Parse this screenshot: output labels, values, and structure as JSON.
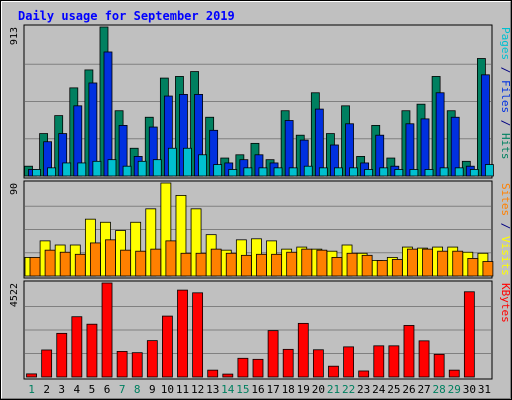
{
  "chart_data": {
    "type": "bar",
    "title": "Daily usage for September 2019",
    "categories": [
      "1",
      "2",
      "3",
      "4",
      "5",
      "6",
      "7",
      "8",
      "9",
      "10",
      "11",
      "12",
      "13",
      "14",
      "15",
      "16",
      "17",
      "18",
      "19",
      "20",
      "21",
      "22",
      "23",
      "24",
      "25",
      "26",
      "27",
      "28",
      "29",
      "30",
      "31"
    ],
    "weekend_days": [
      1,
      7,
      8,
      14,
      15,
      21,
      22,
      28,
      29
    ],
    "panels": [
      {
        "id": "hits-files-pages",
        "ymax": 913,
        "ymax_label": "913",
        "side_labels": [
          {
            "text": "Pages",
            "color": "#00c0d0"
          },
          {
            "text": " / ",
            "color": "#000080"
          },
          {
            "text": "Files",
            "color": "#0030e0"
          },
          {
            "text": " / ",
            "color": "#000080"
          },
          {
            "text": "Hits",
            "color": "#008060"
          }
        ],
        "series": [
          {
            "name": "Hits",
            "color": "#008060",
            "values": [
              60,
              260,
              370,
              540,
              650,
              913,
              400,
              170,
              360,
              600,
              610,
              640,
              360,
              110,
              130,
              200,
              100,
              400,
              250,
              510,
              260,
              430,
              120,
              310,
              110,
              400,
              440,
              610,
              400,
              90,
              720
            ]
          },
          {
            "name": "Files",
            "color": "#0030e0",
            "values": [
              40,
              210,
              260,
              430,
              570,
              760,
              310,
              120,
              300,
              490,
              500,
              500,
              280,
              80,
              100,
              130,
              80,
              340,
              220,
              410,
              190,
              320,
              80,
              250,
              60,
              320,
              350,
              510,
              360,
              60,
              620
            ]
          },
          {
            "name": "Pages",
            "color": "#00c0d0",
            "values": [
              40,
              50,
              80,
              80,
              90,
              100,
              60,
              90,
              100,
              170,
              170,
              130,
              70,
              40,
              50,
              50,
              50,
              50,
              60,
              50,
              50,
              50,
              40,
              50,
              40,
              40,
              40,
              50,
              50,
              40,
              70
            ]
          }
        ]
      },
      {
        "id": "visits-sites",
        "ymax": 90,
        "ymax_label": "90",
        "side_labels": [
          {
            "text": "Sites",
            "color": "#ff8000"
          },
          {
            "text": " / ",
            "color": "#000080"
          },
          {
            "text": "Visits",
            "color": "#ffff00"
          }
        ],
        "series": [
          {
            "name": "Visits",
            "color": "#ffff00",
            "values": [
              18,
              34,
              30,
              30,
              55,
              52,
              44,
              52,
              65,
              90,
              78,
              65,
              40,
              25,
              35,
              36,
              34,
              26,
              28,
              26,
              24,
              30,
              22,
              15,
              18,
              28,
              27,
              28,
              28,
              23,
              22
            ]
          },
          {
            "name": "Sites",
            "color": "#ff8000",
            "values": [
              18,
              25,
              23,
              21,
              32,
              35,
              25,
              24,
              26,
              34,
              22,
              22,
              26,
              22,
              20,
              21,
              21,
              23,
              26,
              25,
              18,
              22,
              20,
              15,
              16,
              26,
              26,
              24,
              24,
              17,
              14
            ]
          }
        ]
      },
      {
        "id": "kbytes",
        "ymax": 4522,
        "ymax_label": "4522",
        "side_labels": [
          {
            "text": "KBytes",
            "color": "#ff0000"
          }
        ],
        "series": [
          {
            "name": "KBytes",
            "color": "#ff0000",
            "values": [
              150,
              1300,
              2100,
              2900,
              2540,
              4522,
              1230,
              1170,
              1750,
              2930,
              4180,
              4050,
              330,
              140,
              900,
              850,
              2230,
              1330,
              2580,
              1310,
              520,
              1450,
              290,
              1500,
              1500,
              2480,
              1740,
              1090,
              330,
              4100,
              0
            ]
          }
        ]
      }
    ]
  }
}
